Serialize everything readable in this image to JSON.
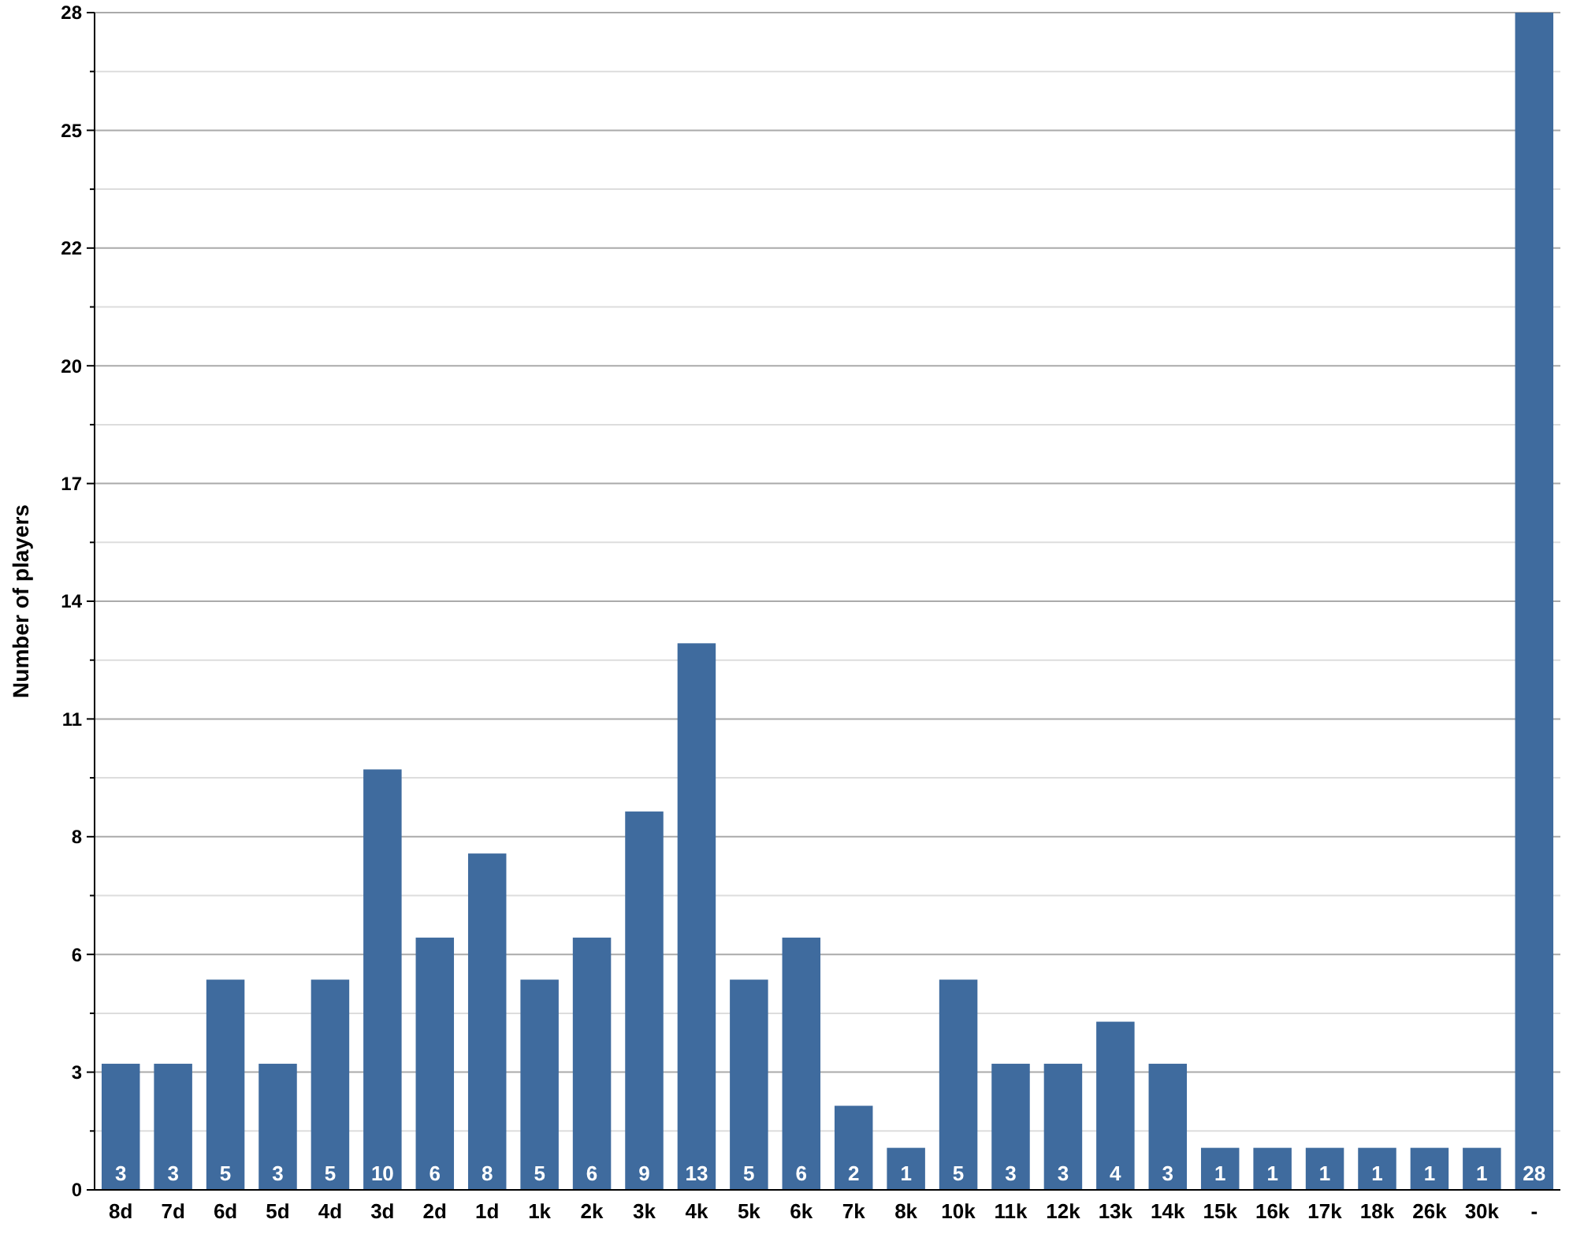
{
  "chart_data": {
    "type": "bar",
    "ylabel": "Number of players",
    "categories": [
      "8d",
      "7d",
      "6d",
      "5d",
      "4d",
      "3d",
      "2d",
      "1d",
      "1k",
      "2k",
      "3k",
      "4k",
      "5k",
      "6k",
      "7k",
      "8k",
      "10k",
      "11k",
      "12k",
      "13k",
      "14k",
      "15k",
      "16k",
      "17k",
      "18k",
      "26k",
      "30k",
      "-"
    ],
    "values": [
      3,
      3,
      5,
      3,
      5,
      10,
      6,
      8,
      5,
      6,
      9,
      13,
      5,
      6,
      2,
      1,
      5,
      3,
      3,
      4,
      3,
      1,
      1,
      1,
      1,
      1,
      1,
      28
    ],
    "color": "#3f6b9e",
    "ylim": [
      0,
      28
    ],
    "yticks": [
      {
        "value": 0,
        "label": "0"
      },
      {
        "value": 1.4,
        "label": null
      },
      {
        "value": 2.8,
        "label": "3"
      },
      {
        "value": 4.2,
        "label": null
      },
      {
        "value": 5.6,
        "label": "6"
      },
      {
        "value": 7,
        "label": null
      },
      {
        "value": 8.4,
        "label": "8"
      },
      {
        "value": 9.8,
        "label": null
      },
      {
        "value": 11.2,
        "label": "11"
      },
      {
        "value": 12.6,
        "label": null
      },
      {
        "value": 14,
        "label": "14"
      },
      {
        "value": 15.4,
        "label": null
      },
      {
        "value": 16.8,
        "label": "17"
      },
      {
        "value": 18.2,
        "label": null
      },
      {
        "value": 19.6,
        "label": "20"
      },
      {
        "value": 21,
        "label": null
      },
      {
        "value": 22.4,
        "label": "22"
      },
      {
        "value": 23.8,
        "label": null
      },
      {
        "value": 25.2,
        "label": "25"
      },
      {
        "value": 26.6,
        "label": null
      },
      {
        "value": 28,
        "label": "28"
      }
    ],
    "grid": true,
    "data_labels": true
  }
}
